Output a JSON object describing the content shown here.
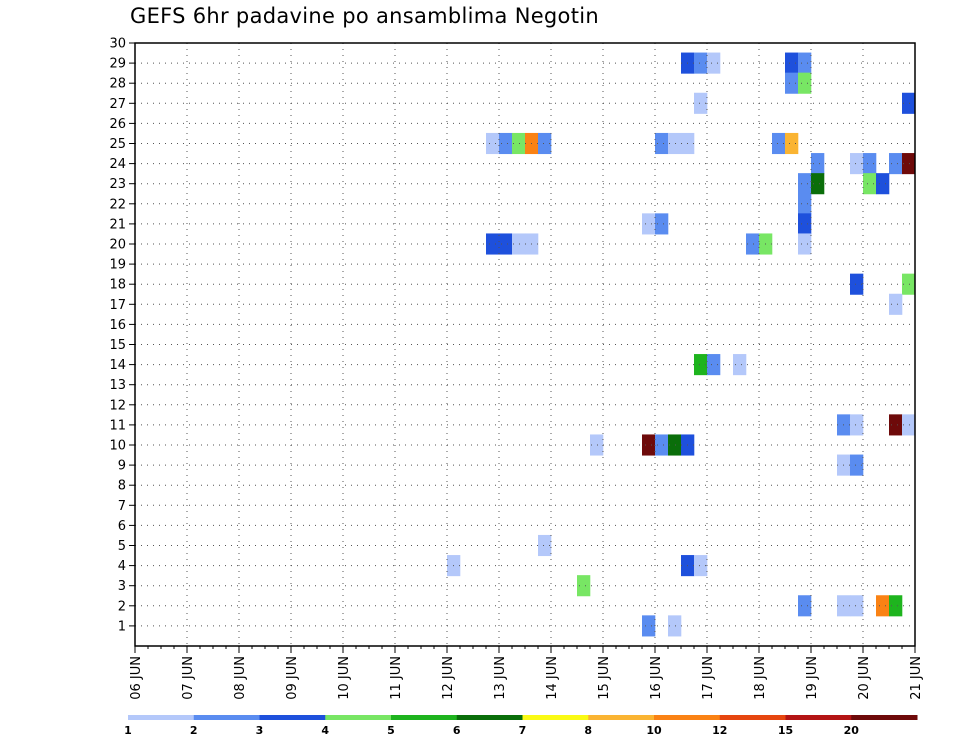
{
  "chart_data": {
    "type": "heatmap",
    "title": "GEFS 6hr padavine po ansamblima Negotin",
    "xlabel": "",
    "ylabel": "",
    "x_tick_labels": [
      "06 JUN",
      "07 JUN",
      "08 JUN",
      "09 JUN",
      "10 JUN",
      "11 JUN",
      "12 JUN",
      "13 JUN",
      "14 JUN",
      "15 JUN",
      "16 JUN",
      "17 JUN",
      "18 JUN",
      "19 JUN",
      "20 JUN",
      "21 JUN"
    ],
    "x_range_days": [
      0,
      15
    ],
    "y_range": [
      0,
      30
    ],
    "y_ticks": [
      1,
      2,
      3,
      4,
      5,
      6,
      7,
      8,
      9,
      10,
      11,
      12,
      13,
      14,
      15,
      16,
      17,
      18,
      19,
      20,
      21,
      22,
      23,
      24,
      25,
      26,
      27,
      28,
      29,
      30
    ],
    "grid": true,
    "time_step_days": 0.25,
    "colorbar": {
      "tick_labels": [
        "1",
        "2",
        "3",
        "4",
        "5",
        "6",
        "7",
        "8",
        "10",
        "12",
        "15",
        "20"
      ],
      "colors": [
        "#b4c8fa",
        "#5a8cf0",
        "#1e50dc",
        "#78e664",
        "#1eb41e",
        "#0a6e0a",
        "#fafa14",
        "#fab432",
        "#fa8214",
        "#e6460f",
        "#b41414",
        "#6e0a0a"
      ]
    },
    "cells": [
      {
        "member": 29,
        "day": 10.5,
        "color": "#1e50dc"
      },
      {
        "member": 29,
        "day": 10.75,
        "color": "#5a8cf0"
      },
      {
        "member": 29,
        "day": 11.0,
        "color": "#b4c8fa"
      },
      {
        "member": 29,
        "day": 12.5,
        "color": "#1e50dc"
      },
      {
        "member": 29,
        "day": 12.75,
        "color": "#5a8cf0"
      },
      {
        "member": 28,
        "day": 12.5,
        "color": "#5a8cf0"
      },
      {
        "member": 28,
        "day": 12.75,
        "color": "#78e664"
      },
      {
        "member": 27,
        "day": 10.75,
        "color": "#b4c8fa"
      },
      {
        "member": 27,
        "day": 14.75,
        "color": "#1e50dc"
      },
      {
        "member": 25,
        "day": 6.75,
        "color": "#b4c8fa"
      },
      {
        "member": 25,
        "day": 7.0,
        "color": "#5a8cf0"
      },
      {
        "member": 25,
        "day": 7.25,
        "color": "#78e664"
      },
      {
        "member": 25,
        "day": 7.5,
        "color": "#fa8214"
      },
      {
        "member": 25,
        "day": 7.75,
        "color": "#5a8cf0"
      },
      {
        "member": 25,
        "day": 10.0,
        "color": "#5a8cf0"
      },
      {
        "member": 25,
        "day": 10.25,
        "color": "#b4c8fa"
      },
      {
        "member": 25,
        "day": 10.5,
        "color": "#b4c8fa"
      },
      {
        "member": 25,
        "day": 12.25,
        "color": "#5a8cf0"
      },
      {
        "member": 25,
        "day": 12.5,
        "color": "#fab432"
      },
      {
        "member": 24,
        "day": 13.0,
        "color": "#5a8cf0"
      },
      {
        "member": 24,
        "day": 13.75,
        "color": "#b4c8fa"
      },
      {
        "member": 24,
        "day": 14.0,
        "color": "#5a8cf0"
      },
      {
        "member": 24,
        "day": 14.5,
        "color": "#5a8cf0"
      },
      {
        "member": 24,
        "day": 14.75,
        "color": "#6e0a0a"
      },
      {
        "member": 23,
        "day": 12.75,
        "color": "#5a8cf0"
      },
      {
        "member": 23,
        "day": 13.0,
        "color": "#0a6e0a"
      },
      {
        "member": 23,
        "day": 14.0,
        "color": "#78e664"
      },
      {
        "member": 23,
        "day": 14.25,
        "color": "#1e50dc"
      },
      {
        "member": 22,
        "day": 12.75,
        "color": "#5a8cf0"
      },
      {
        "member": 21,
        "day": 12.75,
        "color": "#1e50dc"
      },
      {
        "member": 21,
        "day": 9.75,
        "color": "#b4c8fa"
      },
      {
        "member": 21,
        "day": 10.0,
        "color": "#5a8cf0"
      },
      {
        "member": 20,
        "day": 6.75,
        "color": "#1e50dc"
      },
      {
        "member": 20,
        "day": 7.0,
        "color": "#1e50dc"
      },
      {
        "member": 20,
        "day": 7.25,
        "color": "#b4c8fa"
      },
      {
        "member": 20,
        "day": 7.5,
        "color": "#b4c8fa"
      },
      {
        "member": 20,
        "day": 11.75,
        "color": "#5a8cf0"
      },
      {
        "member": 20,
        "day": 12.0,
        "color": "#78e664"
      },
      {
        "member": 20,
        "day": 12.75,
        "color": "#b4c8fa"
      },
      {
        "member": 18,
        "day": 13.75,
        "color": "#1e50dc"
      },
      {
        "member": 18,
        "day": 14.75,
        "color": "#78e664"
      },
      {
        "member": 17,
        "day": 14.5,
        "color": "#b4c8fa"
      },
      {
        "member": 14,
        "day": 10.75,
        "color": "#1eb41e"
      },
      {
        "member": 14,
        "day": 11.0,
        "color": "#5a8cf0"
      },
      {
        "member": 14,
        "day": 11.5,
        "color": "#b4c8fa"
      },
      {
        "member": 11,
        "day": 13.5,
        "color": "#5a8cf0"
      },
      {
        "member": 11,
        "day": 13.75,
        "color": "#b4c8fa"
      },
      {
        "member": 11,
        "day": 14.5,
        "color": "#6e0a0a"
      },
      {
        "member": 11,
        "day": 14.75,
        "color": "#b4c8fa"
      },
      {
        "member": 10,
        "day": 8.75,
        "color": "#b4c8fa"
      },
      {
        "member": 10,
        "day": 9.75,
        "color": "#6e0a0a"
      },
      {
        "member": 10,
        "day": 10.0,
        "color": "#5a8cf0"
      },
      {
        "member": 10,
        "day": 10.25,
        "color": "#0a6e0a"
      },
      {
        "member": 10,
        "day": 10.5,
        "color": "#1e50dc"
      },
      {
        "member": 9,
        "day": 13.5,
        "color": "#b4c8fa"
      },
      {
        "member": 9,
        "day": 13.75,
        "color": "#5a8cf0"
      },
      {
        "member": 5,
        "day": 7.75,
        "color": "#b4c8fa"
      },
      {
        "member": 4,
        "day": 6.0,
        "color": "#b4c8fa"
      },
      {
        "member": 4,
        "day": 10.5,
        "color": "#1e50dc"
      },
      {
        "member": 4,
        "day": 10.75,
        "color": "#b4c8fa"
      },
      {
        "member": 3,
        "day": 8.5,
        "color": "#78e664"
      },
      {
        "member": 2,
        "day": 12.75,
        "color": "#5a8cf0"
      },
      {
        "member": 2,
        "day": 13.5,
        "color": "#b4c8fa"
      },
      {
        "member": 2,
        "day": 13.75,
        "color": "#b4c8fa"
      },
      {
        "member": 2,
        "day": 14.25,
        "color": "#fa8214"
      },
      {
        "member": 2,
        "day": 14.5,
        "color": "#1eb41e"
      },
      {
        "member": 1,
        "day": 9.75,
        "color": "#5a8cf0"
      },
      {
        "member": 1,
        "day": 10.25,
        "color": "#b4c8fa"
      }
    ]
  }
}
